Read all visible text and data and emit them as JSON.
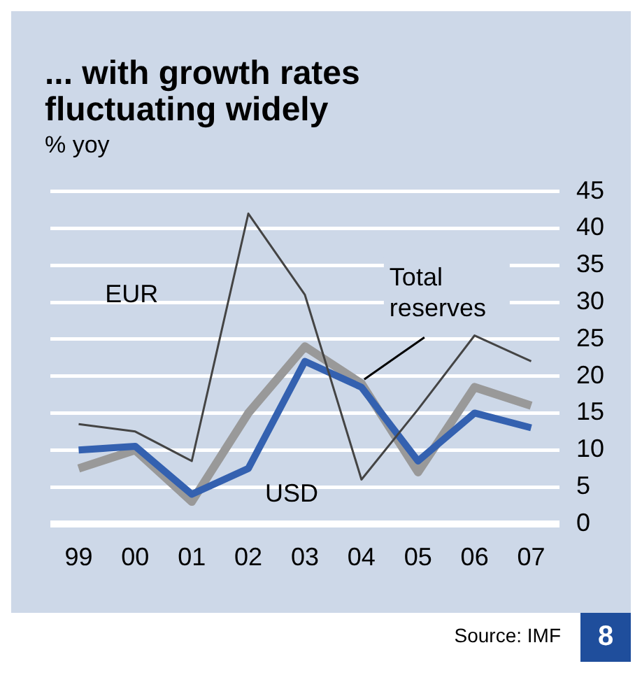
{
  "chart_data": {
    "type": "line",
    "title": "... with growth rates fluctuating widely",
    "ylabel": "% yoy",
    "categories": [
      "99",
      "00",
      "01",
      "02",
      "03",
      "04",
      "05",
      "06",
      "07"
    ],
    "series": [
      {
        "name": "USD",
        "color": "#3461b0",
        "values": [
          10,
          10.5,
          4,
          7.5,
          22,
          18.5,
          8.5,
          15,
          13
        ]
      },
      {
        "name": "Total reserves",
        "color": "#999999",
        "values": [
          7.5,
          10,
          3,
          15,
          24,
          19,
          7,
          18.5,
          16
        ]
      },
      {
        "name": "EUR",
        "color": "#444444",
        "values": [
          13.5,
          12.5,
          8.5,
          42,
          31,
          6,
          15.5,
          25.5,
          22
        ]
      }
    ],
    "ylim": [
      0,
      45
    ],
    "yticks": [
      0,
      5,
      10,
      15,
      20,
      25,
      30,
      35,
      40,
      45
    ],
    "grid": "y",
    "legend": false,
    "marker": "none",
    "line_style": "solid",
    "annotations": [
      "Source: IMF",
      "8"
    ]
  }
}
